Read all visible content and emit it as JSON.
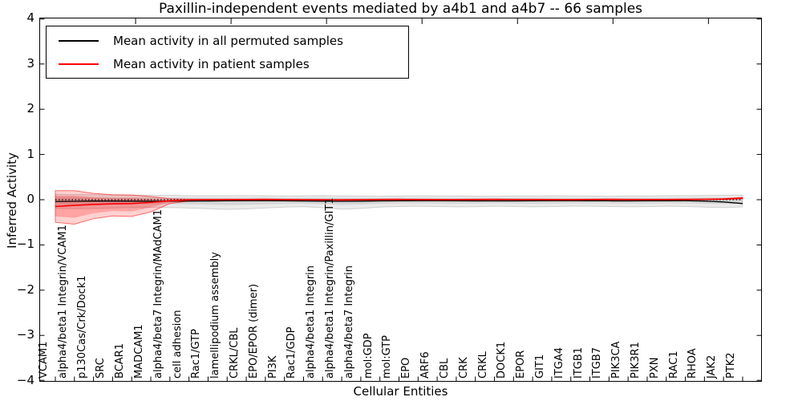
{
  "figure": {
    "title": "Paxillin-independent events mediated by a4b1 and a4b7 -- 66 samples",
    "xlabel": "Cellular Entities",
    "ylabel": "Inferred Activity"
  },
  "legend": {
    "position": "upper left",
    "entries": [
      {
        "label": "Mean activity in all permuted samples",
        "color": "#000000"
      },
      {
        "label": "Mean activity in patient samples",
        "color": "#ff0000"
      }
    ]
  },
  "chart_data": {
    "type": "line",
    "title": "Paxillin-independent events mediated by a4b1 and a4b7 -- 66 samples",
    "xlabel": "Cellular Entities",
    "ylabel": "Inferred Activity",
    "ylim": [
      -4,
      4
    ],
    "grid": false,
    "legend_position": "upper left",
    "ytick_values": [
      4,
      3,
      2,
      1,
      0,
      -1,
      -2,
      -3,
      -4
    ],
    "ytick_labels": [
      "4",
      "3",
      "2",
      "1",
      "0",
      "−1",
      "−2",
      "−3",
      "−4"
    ],
    "categories": [
      "VCAM1",
      "alpha4/beta1 Integrin/VCAM1",
      "p130Cas/Crk/Dock1",
      "SRC",
      "BCAR1",
      "MADCAM1",
      "alpha4/beta7 Integrin/MAdCAM1",
      "cell adhesion",
      "Rac1/GTP",
      "lamellipodium assembly",
      "CRKL/CBL",
      "EPO/EPOR (dimer)",
      "PI3K",
      "Rac1/GDP",
      "alpha4/beta1 Integrin",
      "alpha4/beta1 Integrin/Paxillin/GIT1",
      "alpha4/beta7 Integrin",
      "mol:GDP",
      "mol:GTP",
      "EPO",
      "ARF6",
      "CBL",
      "CRK",
      "CRKL",
      "DOCK1",
      "EPOR",
      "GIT1",
      "ITGA4",
      "ITGB1",
      "ITGB7",
      "PIK3CA",
      "PIK3R1",
      "PXN",
      "RAC1",
      "RHOA",
      "JAK2",
      "PTK2"
    ],
    "series": [
      {
        "id": "permuted-mean-line",
        "name": "Mean activity in all permuted samples",
        "color": "#000000",
        "style": "solid",
        "width": 1.3,
        "values": [
          -0.04,
          -0.035,
          -0.03,
          -0.03,
          -0.032,
          -0.034,
          -0.032,
          -0.03,
          -0.028,
          -0.025,
          -0.022,
          -0.022,
          -0.025,
          -0.028,
          -0.032,
          -0.036,
          -0.032,
          -0.027,
          -0.024,
          -0.022,
          -0.022,
          -0.024,
          -0.026,
          -0.027,
          -0.026,
          -0.024,
          -0.022,
          -0.022,
          -0.023,
          -0.025,
          -0.026,
          -0.025,
          -0.023,
          -0.022,
          -0.03,
          -0.05,
          -0.085
        ]
      },
      {
        "id": "patient-mean-line",
        "name": "Mean activity in patient samples",
        "color": "#ff0000",
        "style": "solid",
        "width": 1.6,
        "values": [
          -0.15,
          -0.125,
          -0.105,
          -0.092,
          -0.085,
          -0.06,
          -0.025,
          -0.006,
          0.0,
          0.002,
          0.004,
          0.005,
          0.003,
          0.0,
          -0.003,
          -0.005,
          0.0,
          0.004,
          0.005,
          0.003,
          0.001,
          0.001,
          0.003,
          0.005,
          0.004,
          0.002,
          0.001,
          0.001,
          0.003,
          0.005,
          0.004,
          0.003,
          0.003,
          0.005,
          0.008,
          0.015,
          0.035
        ]
      }
    ],
    "ref_lines": [
      {
        "y": 0,
        "style": "dotted",
        "color": "#000000"
      }
    ],
    "bands": [
      {
        "name": "permuted-band-outer",
        "fill": "rgba(0,0,0,0.08)",
        "stroke": "rgba(0,0,0,0.15)",
        "upper": [
          0.12,
          0.115,
          0.11,
          0.105,
          0.1,
          0.1,
          0.095,
          0.09,
          0.088,
          0.09,
          0.092,
          0.088,
          0.082,
          0.085,
          0.09,
          0.085,
          0.08,
          0.078,
          0.082,
          0.088,
          0.085,
          0.082,
          0.078,
          0.078,
          0.082,
          0.085,
          0.088,
          0.085,
          0.082,
          0.078,
          0.082,
          0.085,
          0.088,
          0.09,
          0.095,
          0.1,
          0.105
        ],
        "lower": [
          -0.19,
          -0.2,
          -0.195,
          -0.185,
          -0.175,
          -0.17,
          -0.175,
          -0.185,
          -0.2,
          -0.215,
          -0.205,
          -0.185,
          -0.165,
          -0.155,
          -0.18,
          -0.21,
          -0.195,
          -0.165,
          -0.15,
          -0.145,
          -0.15,
          -0.16,
          -0.155,
          -0.145,
          -0.15,
          -0.158,
          -0.152,
          -0.145,
          -0.143,
          -0.15,
          -0.158,
          -0.152,
          -0.145,
          -0.15,
          -0.165,
          -0.175,
          -0.16
        ]
      },
      {
        "name": "permuted-band-inner",
        "fill": "rgba(0,0,0,0.09)",
        "stroke": "none",
        "upper": [
          0.06,
          0.058,
          0.055,
          0.052,
          0.05,
          0.05,
          0.048,
          0.045,
          0.044,
          0.045,
          0.046,
          0.044,
          0.041,
          0.042,
          0.045,
          0.042,
          0.04,
          0.039,
          0.041,
          0.044,
          0.042,
          0.041,
          0.039,
          0.039,
          0.041,
          0.042,
          0.044,
          0.042,
          0.041,
          0.039,
          0.041,
          0.042,
          0.044,
          0.045,
          0.048,
          0.05,
          0.052
        ],
        "lower": [
          -0.105,
          -0.11,
          -0.107,
          -0.102,
          -0.096,
          -0.094,
          -0.096,
          -0.102,
          -0.11,
          -0.118,
          -0.113,
          -0.102,
          -0.091,
          -0.085,
          -0.099,
          -0.115,
          -0.107,
          -0.091,
          -0.082,
          -0.08,
          -0.082,
          -0.088,
          -0.085,
          -0.08,
          -0.082,
          -0.087,
          -0.084,
          -0.08,
          -0.079,
          -0.082,
          -0.087,
          -0.084,
          -0.08,
          -0.082,
          -0.091,
          -0.096,
          -0.088
        ]
      },
      {
        "name": "patient-band-outer",
        "fill": "rgba(255,0,0,0.18)",
        "stroke": "rgba(255,0,0,0.55)",
        "upper": [
          0.2,
          0.2,
          0.14,
          0.11,
          0.105,
          0.07,
          0.022,
          0.012,
          0.01,
          0.011,
          0.012,
          0.013,
          0.011,
          0.009,
          0.007,
          0.006,
          0.009,
          0.012,
          0.013,
          0.011,
          0.009,
          0.009,
          0.011,
          0.013,
          0.012,
          0.01,
          0.009,
          0.009,
          0.011,
          0.013,
          0.012,
          0.011,
          0.011,
          0.013,
          0.016,
          0.025,
          0.05
        ],
        "lower": [
          -0.5,
          -0.54,
          -0.42,
          -0.36,
          -0.37,
          -0.27,
          -0.085,
          -0.028,
          -0.012,
          -0.009,
          -0.006,
          -0.004,
          -0.006,
          -0.009,
          -0.013,
          -0.016,
          -0.01,
          -0.005,
          -0.004,
          -0.006,
          -0.008,
          -0.008,
          -0.006,
          -0.004,
          -0.005,
          -0.007,
          -0.008,
          -0.008,
          -0.006,
          -0.004,
          -0.005,
          -0.006,
          -0.006,
          -0.004,
          -0.001,
          0.005,
          0.02
        ]
      },
      {
        "name": "patient-band-inner",
        "fill": "rgba(255,0,0,0.22)",
        "stroke": "none",
        "upper": [
          0.09,
          0.09,
          0.05,
          0.035,
          0.035,
          0.015,
          0.002,
          0.004,
          0.005,
          0.007,
          0.008,
          0.009,
          0.007,
          0.005,
          0.002,
          0.001,
          0.005,
          0.008,
          0.009,
          0.007,
          0.005,
          0.005,
          0.007,
          0.009,
          0.008,
          0.006,
          0.005,
          0.005,
          0.007,
          0.009,
          0.008,
          0.007,
          0.007,
          0.009,
          0.012,
          0.02,
          0.042
        ],
        "lower": [
          -0.37,
          -0.4,
          -0.3,
          -0.25,
          -0.26,
          -0.17,
          -0.055,
          -0.017,
          -0.006,
          -0.003,
          0.0,
          0.001,
          -0.001,
          -0.004,
          -0.008,
          -0.011,
          -0.005,
          0.0,
          0.001,
          -0.001,
          -0.003,
          -0.003,
          -0.001,
          0.001,
          0.0,
          -0.002,
          -0.003,
          -0.003,
          -0.001,
          0.001,
          0.0,
          -0.001,
          -0.001,
          0.001,
          0.004,
          0.01,
          0.028
        ]
      }
    ]
  }
}
